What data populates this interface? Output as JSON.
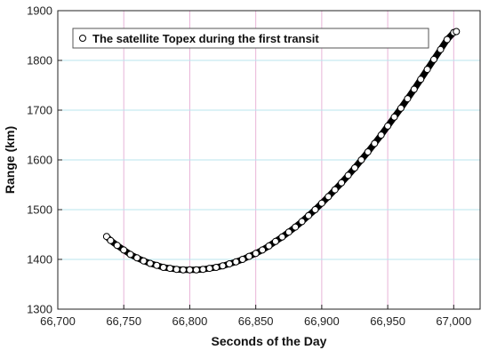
{
  "chart_data": {
    "type": "scatter",
    "title": "",
    "xlabel": "Seconds of the Day",
    "ylabel": "Range (km)",
    "xlim": [
      66700,
      67020
    ],
    "ylim": [
      1300,
      1900
    ],
    "x_ticks": [
      66700,
      66750,
      66800,
      66850,
      66900,
      66950,
      67000
    ],
    "x_tick_labels": [
      "66,700",
      "66,750",
      "66,800",
      "66,850",
      "66,900",
      "66,950",
      "67,000"
    ],
    "y_ticks": [
      1300,
      1400,
      1500,
      1600,
      1700,
      1800,
      1900
    ],
    "y_tick_labels": [
      "1300",
      "1400",
      "1500",
      "1600",
      "1700",
      "1800",
      "1900"
    ],
    "grid": true,
    "grid_color_vertical": "#e8b4d8",
    "grid_color_horizontal": "#b8e6ee",
    "legend_position": "top-left",
    "series": [
      {
        "name": "The satellite Topex during the first transit",
        "marker": "open-circle",
        "color": "#000000",
        "x": [
          66737,
          66740,
          66745,
          66750,
          66755,
          66760,
          66765,
          66770,
          66775,
          66780,
          66785,
          66790,
          66795,
          66800,
          66805,
          66810,
          66815,
          66820,
          66825,
          66830,
          66835,
          66840,
          66845,
          66850,
          66855,
          66860,
          66865,
          66870,
          66875,
          66880,
          66885,
          66890,
          66895,
          66900,
          66905,
          66910,
          66915,
          66920,
          66925,
          66930,
          66935,
          66940,
          66945,
          66950,
          66955,
          66960,
          66965,
          66970,
          66975,
          66980,
          66985,
          66990,
          66995,
          67000,
          67002
        ],
        "y": [
          1446,
          1438,
          1428,
          1419,
          1410,
          1403,
          1397,
          1392,
          1388,
          1384,
          1382,
          1380,
          1379,
          1379,
          1379,
          1380,
          1382,
          1384,
          1387,
          1391,
          1395,
          1400,
          1406,
          1412,
          1419,
          1427,
          1436,
          1445,
          1455,
          1465,
          1476,
          1488,
          1500,
          1513,
          1526,
          1540,
          1554,
          1569,
          1584,
          1600,
          1616,
          1633,
          1650,
          1668,
          1686,
          1704,
          1723,
          1742,
          1762,
          1782,
          1802,
          1822,
          1842,
          1856,
          1858
        ]
      }
    ]
  }
}
